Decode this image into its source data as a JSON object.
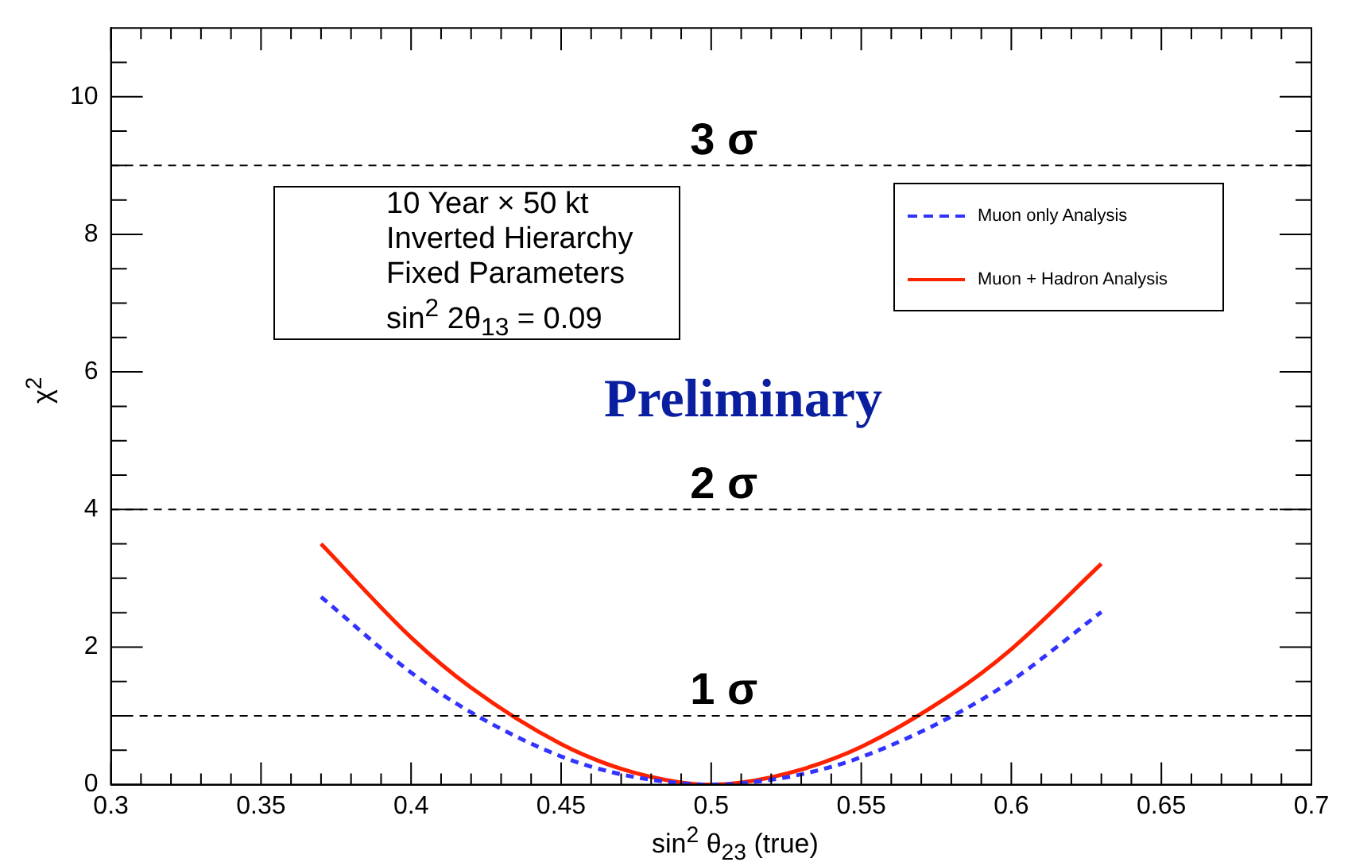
{
  "chart_data": {
    "type": "line",
    "xlabel": "sin$^{2}$ θ$_{23}$ (true)",
    "ylabel": "χ$^{2}$",
    "x": [
      0.37,
      0.4,
      0.42,
      0.45,
      0.47,
      0.49,
      0.5,
      0.51,
      0.53,
      0.55,
      0.58,
      0.6,
      0.63
    ],
    "series": [
      {
        "name": "Muon only Analysis",
        "color": "#3333ff",
        "line_style": "dashed",
        "values": [
          2.73,
          1.63,
          1.05,
          0.41,
          0.15,
          0.02,
          0,
          0.02,
          0.15,
          0.4,
          0.99,
          1.51,
          2.51
        ]
      },
      {
        "name": "Muon + Hadron Analysis",
        "color": "#ff2200",
        "line_style": "solid",
        "values": [
          3.5,
          2.14,
          1.41,
          0.59,
          0.23,
          0.03,
          0,
          0.03,
          0.22,
          0.55,
          1.31,
          1.97,
          3.21
        ]
      }
    ],
    "xlim": [
      0.3,
      0.7
    ],
    "xticks": [
      0.3,
      {
        "value": 0.31,
        "label": null
      },
      {
        "value": 0.32,
        "label": null
      },
      {
        "value": 0.33,
        "label": null
      },
      {
        "value": 0.34,
        "label": null
      },
      0.35,
      {
        "value": 0.36,
        "label": null
      },
      {
        "value": 0.37,
        "label": null
      },
      {
        "value": 0.38,
        "label": null
      },
      {
        "value": 0.39,
        "label": null
      },
      0.4,
      {
        "value": 0.41,
        "label": null
      },
      {
        "value": 0.42,
        "label": null
      },
      {
        "value": 0.43,
        "label": null
      },
      {
        "value": 0.44,
        "label": null
      },
      0.45,
      {
        "value": 0.46,
        "label": null
      },
      {
        "value": 0.47,
        "label": null
      },
      {
        "value": 0.48,
        "label": null
      },
      {
        "value": 0.49,
        "label": null
      },
      0.5,
      {
        "value": 0.51,
        "label": null
      },
      {
        "value": 0.52,
        "label": null
      },
      {
        "value": 0.53,
        "label": null
      },
      {
        "value": 0.54,
        "label": null
      },
      0.55,
      {
        "value": 0.56,
        "label": null
      },
      {
        "value": 0.57,
        "label": null
      },
      {
        "value": 0.58,
        "label": null
      },
      {
        "value": 0.59,
        "label": null
      },
      0.6,
      {
        "value": 0.61,
        "label": null
      },
      {
        "value": 0.62,
        "label": null
      },
      {
        "value": 0.63,
        "label": null
      },
      {
        "value": 0.64,
        "label": null
      },
      0.65,
      {
        "value": 0.66,
        "label": null
      },
      {
        "value": 0.67,
        "label": null
      },
      {
        "value": 0.68,
        "label": null
      },
      {
        "value": 0.69,
        "label": null
      },
      0.7
    ],
    "ylim": [
      0,
      11
    ],
    "yticks": [
      0,
      {
        "value": 0.5,
        "label": null
      },
      {
        "value": 1,
        "label": null
      },
      {
        "value": 1.5,
        "label": null
      },
      2,
      {
        "value": 2.5,
        "label": null
      },
      {
        "value": 3,
        "label": null
      },
      {
        "value": 3.5,
        "label": null
      },
      4,
      {
        "value": 4.5,
        "label": null
      },
      {
        "value": 5,
        "label": null
      },
      {
        "value": 5.5,
        "label": null
      },
      6,
      {
        "value": 6.5,
        "label": null
      },
      {
        "value": 7,
        "label": null
      },
      {
        "value": 7.5,
        "label": null
      },
      8,
      {
        "value": 8.5,
        "label": null
      },
      {
        "value": 9,
        "label": null
      },
      {
        "value": 9.5,
        "label": null
      },
      10,
      {
        "value": 10.5,
        "label": null
      }
    ],
    "ref_lines": [
      {
        "axis": "y",
        "value": 1,
        "label": "1 σ",
        "color": "#000000",
        "line_style": "dashed"
      },
      {
        "axis": "y",
        "value": 4,
        "label": "2 σ",
        "color": "#000000",
        "line_style": "dashed"
      },
      {
        "axis": "y",
        "value": 9,
        "label": "3 σ",
        "color": "#000000",
        "line_style": "dashed"
      }
    ],
    "annotations": [
      "10 Year × 50 kt",
      "Inverted Hierarchy",
      "Fixed Parameters",
      "sin$^{2}$ 2θ$_{13}$ = 0.09",
      "Preliminary"
    ],
    "legend": "top right",
    "marker": "none",
    "grid": false
  }
}
